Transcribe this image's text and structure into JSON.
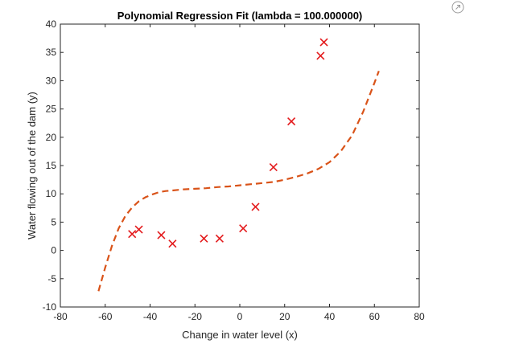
{
  "figure": {
    "export_icon": "arrow-up-right-circle-icon"
  },
  "chart_data": {
    "type": "scatter",
    "title": "Polynomial Regression Fit (lambda = 100.000000)",
    "xlabel": "Change in water level (x)",
    "ylabel": "Water flowing out of the dam (y)",
    "xlim": [
      -80,
      80
    ],
    "ylim": [
      -10,
      40
    ],
    "xticks": [
      -80,
      -60,
      -40,
      -20,
      0,
      20,
      40,
      60,
      80
    ],
    "yticks": [
      -10,
      -5,
      0,
      5,
      10,
      15,
      20,
      25,
      30,
      35,
      40
    ],
    "grid": false,
    "series": [
      {
        "type": "scatter",
        "marker": "x",
        "color": "#e31a1c",
        "points": [
          [
            -48,
            2.9
          ],
          [
            -45,
            3.7
          ],
          [
            -35,
            2.7
          ],
          [
            -30,
            1.2
          ],
          [
            -16,
            2.1
          ],
          [
            -9,
            2.1
          ],
          [
            1.5,
            3.9
          ],
          [
            7,
            7.7
          ],
          [
            15,
            14.7
          ],
          [
            23,
            22.8
          ],
          [
            36,
            34.4
          ],
          [
            37.5,
            36.8
          ]
        ]
      },
      {
        "type": "line",
        "style": "dashed",
        "color": "#d95319",
        "points": [
          [
            -63,
            -7.2
          ],
          [
            -60,
            -3.0
          ],
          [
            -57,
            0.8
          ],
          [
            -54,
            3.9
          ],
          [
            -51,
            6.1
          ],
          [
            -48,
            7.6
          ],
          [
            -45,
            8.7
          ],
          [
            -42,
            9.4
          ],
          [
            -39,
            9.9
          ],
          [
            -36,
            10.3
          ],
          [
            -33,
            10.5
          ],
          [
            -30,
            10.6
          ],
          [
            -25,
            10.8
          ],
          [
            -20,
            10.9
          ],
          [
            -15,
            11.0
          ],
          [
            -10,
            11.2
          ],
          [
            -5,
            11.3
          ],
          [
            0,
            11.5
          ],
          [
            5,
            11.7
          ],
          [
            10,
            11.9
          ],
          [
            15,
            12.1
          ],
          [
            20,
            12.5
          ],
          [
            25,
            13.0
          ],
          [
            30,
            13.6
          ],
          [
            35,
            14.4
          ],
          [
            40,
            15.6
          ],
          [
            45,
            17.5
          ],
          [
            50,
            20.3
          ],
          [
            55,
            24.5
          ],
          [
            60,
            29.6
          ],
          [
            62,
            31.7
          ]
        ]
      }
    ]
  }
}
